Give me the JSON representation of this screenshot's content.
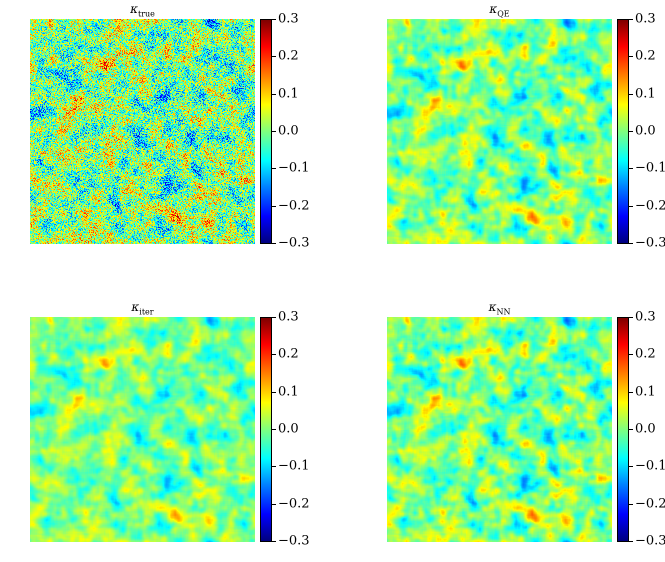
{
  "chart_data": [
    {
      "type": "heatmap",
      "title": "κ",
      "title_sub": "true",
      "colormap": "jet",
      "vmin": -0.3,
      "vmax": 0.3,
      "colorbar_ticks": [
        "0.3",
        "0.2",
        "0.1",
        "0.0",
        "−0.1",
        "−0.2",
        "−0.3"
      ],
      "noise": "fine"
    },
    {
      "type": "heatmap",
      "title": "κ",
      "title_sub": "QE",
      "colormap": "jet",
      "vmin": -0.3,
      "vmax": 0.3,
      "colorbar_ticks": [
        "0.3",
        "0.2",
        "0.1",
        "0.0",
        "−0.1",
        "−0.2",
        "−0.3"
      ],
      "noise": "smooth"
    },
    {
      "type": "heatmap",
      "title": "κ",
      "title_sub": "iter",
      "colormap": "jet",
      "vmin": -0.3,
      "vmax": 0.3,
      "colorbar_ticks": [
        "0.3",
        "0.2",
        "0.1",
        "0.0",
        "−0.1",
        "−0.2",
        "−0.3"
      ],
      "noise": "smoother"
    },
    {
      "type": "heatmap",
      "title": "κ",
      "title_sub": "NN",
      "colormap": "jet",
      "vmin": -0.3,
      "vmax": 0.3,
      "colorbar_ticks": [
        "0.3",
        "0.2",
        "0.1",
        "0.0",
        "−0.1",
        "−0.2",
        "−0.3"
      ],
      "noise": "smooth"
    }
  ]
}
